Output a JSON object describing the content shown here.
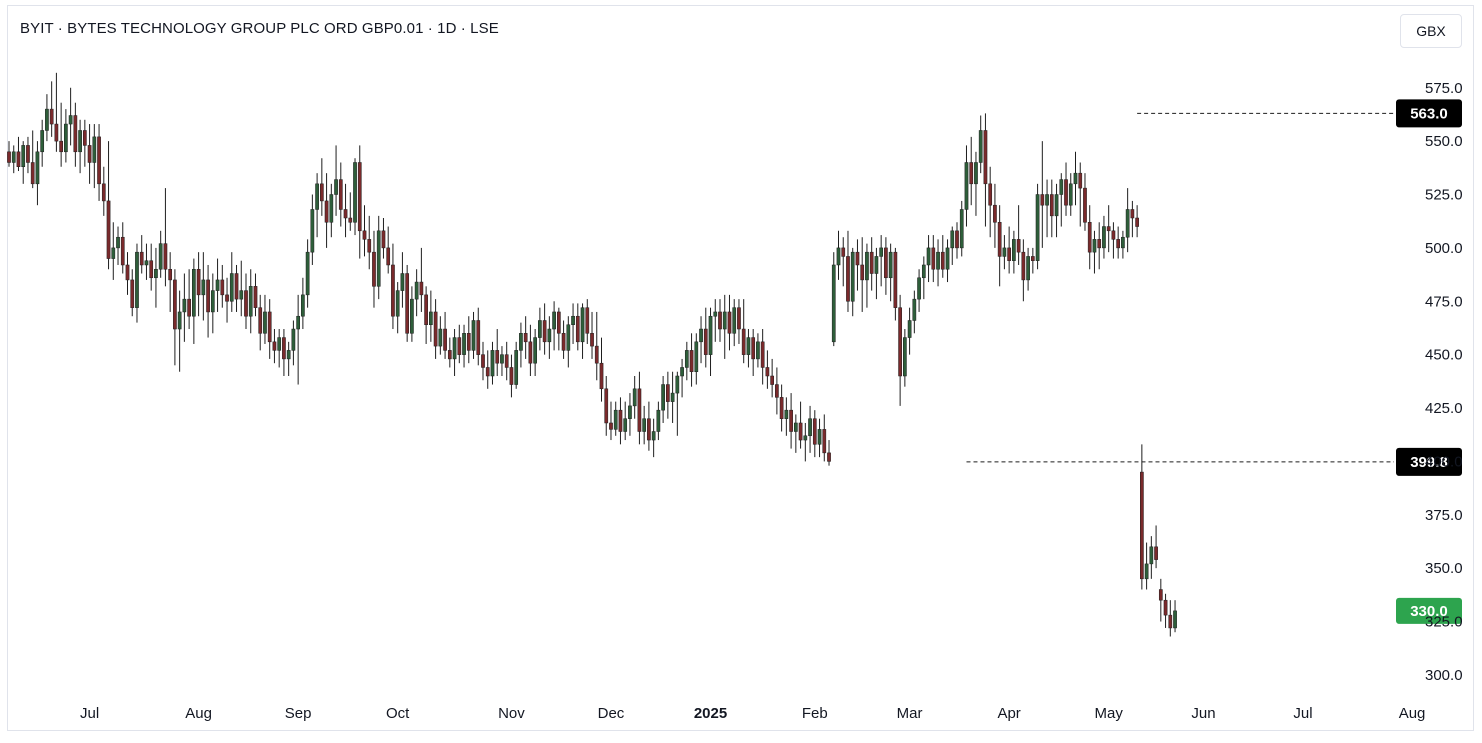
{
  "header": {
    "title": "BYIT · BYTES TECHNOLOGY GROUP PLC ORD GBP0.01 · 1D · LSE",
    "currency": "GBX"
  },
  "colors": {
    "up": "#2e5e3a",
    "down": "#7a2a2c",
    "wick": "#1e1e1e",
    "last_price_badge": "#2da44e",
    "marker_badge": "#000000",
    "grid_text": "#131722"
  },
  "chart_data": {
    "type": "candlestick",
    "y_ticks": [
      "575.0",
      "550.0",
      "525.0",
      "500.0",
      "475.0",
      "450.0",
      "425.0",
      "400.0",
      "375.0",
      "350.0",
      "325.0",
      "300.0"
    ],
    "y_tick_values": [
      575,
      550,
      525,
      500,
      475,
      450,
      425,
      400,
      375,
      350,
      325,
      300
    ],
    "ylim": [
      292,
      588
    ],
    "x_labels": [
      {
        "label": "Jul",
        "day": 17,
        "bold": false
      },
      {
        "label": "Aug",
        "day": 40,
        "bold": false
      },
      {
        "label": "Sep",
        "day": 61,
        "bold": false
      },
      {
        "label": "Oct",
        "day": 82,
        "bold": false
      },
      {
        "label": "Nov",
        "day": 106,
        "bold": false
      },
      {
        "label": "Dec",
        "day": 127,
        "bold": false
      },
      {
        "label": "2025",
        "day": 148,
        "bold": true
      },
      {
        "label": "Feb",
        "day": 170,
        "bold": false
      },
      {
        "label": "Mar",
        "day": 190,
        "bold": false
      },
      {
        "label": "Apr",
        "day": 211,
        "bold": false
      },
      {
        "label": "May",
        "day": 232,
        "bold": false
      },
      {
        "label": "Jun",
        "day": 252,
        "bold": false
      },
      {
        "label": "Jul",
        "day": 273,
        "bold": false
      },
      {
        "label": "Aug",
        "day": 296,
        "bold": false
      }
    ],
    "markers": [
      {
        "label": "563.0",
        "value": 563.0,
        "start_day": 238,
        "style": "dashed"
      },
      {
        "label": "399.8",
        "value": 399.8,
        "start_day": 202,
        "style": "dashed"
      }
    ],
    "last_price": {
      "label": "330.0",
      "value": 330.0
    },
    "candles": [
      [
        545,
        550,
        538,
        540
      ],
      [
        540,
        548,
        535,
        545
      ],
      [
        545,
        552,
        536,
        538
      ],
      [
        538,
        550,
        530,
        548
      ],
      [
        548,
        552,
        535,
        540
      ],
      [
        540,
        555,
        528,
        530
      ],
      [
        530,
        550,
        520,
        545
      ],
      [
        545,
        560,
        538,
        555
      ],
      [
        555,
        572,
        550,
        565
      ],
      [
        565,
        578,
        552,
        558
      ],
      [
        558,
        582,
        545,
        550
      ],
      [
        550,
        568,
        538,
        545
      ],
      [
        545,
        565,
        540,
        558
      ],
      [
        558,
        575,
        548,
        562
      ],
      [
        562,
        568,
        538,
        545
      ],
      [
        545,
        560,
        535,
        555
      ],
      [
        555,
        560,
        538,
        548
      ],
      [
        548,
        558,
        530,
        540
      ],
      [
        540,
        558,
        528,
        552
      ],
      [
        552,
        558,
        522,
        530
      ],
      [
        530,
        538,
        515,
        522
      ],
      [
        522,
        550,
        490,
        495
      ],
      [
        495,
        512,
        485,
        500
      ],
      [
        500,
        510,
        492,
        505
      ],
      [
        505,
        512,
        488,
        492
      ],
      [
        492,
        498,
        478,
        485
      ],
      [
        485,
        490,
        468,
        472
      ],
      [
        472,
        502,
        465,
        498
      ],
      [
        498,
        506,
        488,
        492
      ],
      [
        492,
        502,
        485,
        494
      ],
      [
        494,
        502,
        480,
        486
      ],
      [
        486,
        500,
        472,
        490
      ],
      [
        490,
        508,
        486,
        502
      ],
      [
        502,
        528,
        482,
        490
      ],
      [
        490,
        498,
        470,
        485
      ],
      [
        485,
        490,
        445,
        462
      ],
      [
        462,
        480,
        442,
        470
      ],
      [
        470,
        488,
        456,
        476
      ],
      [
        476,
        490,
        462,
        468
      ],
      [
        468,
        495,
        455,
        490
      ],
      [
        490,
        498,
        468,
        478
      ],
      [
        478,
        498,
        466,
        485
      ],
      [
        485,
        492,
        458,
        470
      ],
      [
        470,
        488,
        460,
        480
      ],
      [
        480,
        495,
        470,
        485
      ],
      [
        485,
        492,
        472,
        478
      ],
      [
        478,
        486,
        465,
        475
      ],
      [
        475,
        498,
        470,
        488
      ],
      [
        488,
        492,
        470,
        476
      ],
      [
        476,
        494,
        468,
        480
      ],
      [
        480,
        488,
        462,
        468
      ],
      [
        468,
        490,
        460,
        482
      ],
      [
        482,
        488,
        468,
        472
      ],
      [
        472,
        478,
        452,
        460
      ],
      [
        460,
        478,
        455,
        470
      ],
      [
        470,
        476,
        448,
        456
      ],
      [
        456,
        462,
        446,
        452
      ],
      [
        452,
        462,
        444,
        458
      ],
      [
        458,
        462,
        440,
        448
      ],
      [
        448,
        456,
        440,
        452
      ],
      [
        452,
        466,
        445,
        462
      ],
      [
        462,
        478,
        436,
        468
      ],
      [
        468,
        486,
        462,
        478
      ],
      [
        478,
        504,
        472,
        498
      ],
      [
        498,
        525,
        492,
        518
      ],
      [
        518,
        535,
        505,
        530
      ],
      [
        530,
        542,
        515,
        522
      ],
      [
        522,
        535,
        500,
        512
      ],
      [
        512,
        530,
        505,
        525
      ],
      [
        525,
        548,
        515,
        532
      ],
      [
        532,
        540,
        510,
        518
      ],
      [
        518,
        530,
        505,
        514
      ],
      [
        514,
        526,
        508,
        512
      ],
      [
        512,
        542,
        506,
        540
      ],
      [
        540,
        548,
        495,
        508
      ],
      [
        508,
        520,
        496,
        504
      ],
      [
        504,
        515,
        490,
        498
      ],
      [
        498,
        508,
        472,
        482
      ],
      [
        482,
        515,
        476,
        508
      ],
      [
        508,
        514,
        495,
        500
      ],
      [
        500,
        510,
        488,
        492
      ],
      [
        492,
        502,
        462,
        468
      ],
      [
        468,
        484,
        460,
        480
      ],
      [
        480,
        498,
        472,
        488
      ],
      [
        488,
        492,
        456,
        460
      ],
      [
        460,
        482,
        456,
        476
      ],
      [
        476,
        490,
        468,
        484
      ],
      [
        484,
        500,
        470,
        478
      ],
      [
        478,
        482,
        455,
        464
      ],
      [
        464,
        480,
        456,
        470
      ],
      [
        470,
        476,
        448,
        454
      ],
      [
        454,
        468,
        450,
        462
      ],
      [
        462,
        470,
        448,
        452
      ],
      [
        452,
        458,
        444,
        448
      ],
      [
        448,
        462,
        440,
        458
      ],
      [
        458,
        464,
        446,
        450
      ],
      [
        450,
        464,
        444,
        460
      ],
      [
        460,
        468,
        446,
        452
      ],
      [
        452,
        470,
        448,
        466
      ],
      [
        466,
        472,
        445,
        450
      ],
      [
        450,
        456,
        438,
        444
      ],
      [
        444,
        452,
        434,
        440
      ],
      [
        440,
        456,
        436,
        452
      ],
      [
        452,
        462,
        440,
        446
      ],
      [
        446,
        454,
        440,
        450
      ],
      [
        450,
        456,
        438,
        444
      ],
      [
        444,
        450,
        430,
        436
      ],
      [
        436,
        456,
        434,
        452
      ],
      [
        452,
        465,
        444,
        460
      ],
      [
        460,
        468,
        448,
        456
      ],
      [
        456,
        464,
        440,
        446
      ],
      [
        446,
        462,
        440,
        458
      ],
      [
        458,
        472,
        452,
        466
      ],
      [
        466,
        474,
        450,
        456
      ],
      [
        456,
        468,
        448,
        462
      ],
      [
        462,
        475,
        452,
        470
      ],
      [
        470,
        472,
        452,
        460
      ],
      [
        460,
        466,
        448,
        452
      ],
      [
        452,
        468,
        444,
        464
      ],
      [
        464,
        474,
        455,
        468
      ],
      [
        468,
        474,
        452,
        456
      ],
      [
        456,
        474,
        448,
        472
      ],
      [
        472,
        476,
        455,
        460
      ],
      [
        460,
        470,
        448,
        454
      ],
      [
        454,
        470,
        438,
        446
      ],
      [
        446,
        458,
        428,
        434
      ],
      [
        434,
        440,
        412,
        418
      ],
      [
        418,
        428,
        410,
        415
      ],
      [
        415,
        428,
        412,
        424
      ],
      [
        424,
        430,
        408,
        414
      ],
      [
        414,
        428,
        410,
        420
      ],
      [
        420,
        432,
        412,
        426
      ],
      [
        426,
        440,
        420,
        434
      ],
      [
        434,
        442,
        408,
        414
      ],
      [
        414,
        426,
        408,
        420
      ],
      [
        420,
        428,
        405,
        410
      ],
      [
        410,
        420,
        402,
        414
      ],
      [
        414,
        428,
        410,
        424
      ],
      [
        424,
        440,
        418,
        436
      ],
      [
        436,
        442,
        420,
        428
      ],
      [
        428,
        442,
        418,
        432
      ],
      [
        432,
        442,
        412,
        440
      ],
      [
        440,
        448,
        430,
        444
      ],
      [
        444,
        456,
        438,
        452
      ],
      [
        452,
        460,
        435,
        442
      ],
      [
        442,
        460,
        436,
        456
      ],
      [
        456,
        468,
        446,
        462
      ],
      [
        462,
        472,
        444,
        450
      ],
      [
        450,
        472,
        440,
        468
      ],
      [
        468,
        476,
        456,
        470
      ],
      [
        470,
        476,
        456,
        462
      ],
      [
        462,
        478,
        448,
        470
      ],
      [
        470,
        478,
        452,
        460
      ],
      [
        460,
        476,
        454,
        472
      ],
      [
        472,
        476,
        455,
        462
      ],
      [
        462,
        476,
        446,
        450
      ],
      [
        450,
        462,
        444,
        458
      ],
      [
        458,
        462,
        440,
        448
      ],
      [
        448,
        460,
        444,
        456
      ],
      [
        456,
        462,
        436,
        444
      ],
      [
        444,
        452,
        434,
        440
      ],
      [
        440,
        448,
        430,
        436
      ],
      [
        436,
        444,
        422,
        430
      ],
      [
        430,
        436,
        414,
        420
      ],
      [
        420,
        430,
        412,
        424
      ],
      [
        424,
        432,
        406,
        414
      ],
      [
        414,
        422,
        404,
        418
      ],
      [
        418,
        428,
        406,
        410
      ],
      [
        410,
        418,
        400,
        412
      ],
      [
        412,
        426,
        404,
        420
      ],
      [
        420,
        424,
        402,
        408
      ],
      [
        408,
        420,
        402,
        415
      ],
      [
        415,
        422,
        400,
        404
      ],
      [
        404,
        410,
        398,
        400
      ],
      [
        456,
        498,
        454,
        492
      ],
      [
        492,
        508,
        485,
        500
      ],
      [
        500,
        505,
        482,
        496
      ],
      [
        496,
        508,
        470,
        475
      ],
      [
        475,
        500,
        468,
        498
      ],
      [
        498,
        504,
        480,
        492
      ],
      [
        492,
        505,
        470,
        485
      ],
      [
        485,
        502,
        472,
        498
      ],
      [
        498,
        505,
        480,
        488
      ],
      [
        488,
        500,
        476,
        496
      ],
      [
        496,
        506,
        482,
        500
      ],
      [
        500,
        505,
        478,
        486
      ],
      [
        486,
        502,
        475,
        498
      ],
      [
        498,
        500,
        466,
        472
      ],
      [
        472,
        478,
        426,
        440
      ],
      [
        440,
        462,
        435,
        458
      ],
      [
        458,
        472,
        450,
        466
      ],
      [
        466,
        480,
        460,
        476
      ],
      [
        476,
        490,
        470,
        486
      ],
      [
        486,
        496,
        476,
        492
      ],
      [
        492,
        506,
        484,
        500
      ],
      [
        500,
        506,
        484,
        490
      ],
      [
        490,
        504,
        482,
        498
      ],
      [
        498,
        506,
        486,
        490
      ],
      [
        490,
        504,
        484,
        500
      ],
      [
        500,
        510,
        492,
        508
      ],
      [
        508,
        512,
        495,
        500
      ],
      [
        500,
        522,
        496,
        518
      ],
      [
        518,
        548,
        510,
        540
      ],
      [
        540,
        552,
        520,
        530
      ],
      [
        530,
        545,
        515,
        540
      ],
      [
        540,
        562,
        535,
        555
      ],
      [
        555,
        563,
        510,
        530
      ],
      [
        530,
        538,
        505,
        520
      ],
      [
        520,
        530,
        500,
        512
      ],
      [
        512,
        520,
        482,
        496
      ],
      [
        496,
        506,
        490,
        500
      ],
      [
        500,
        510,
        488,
        494
      ],
      [
        494,
        508,
        488,
        504
      ],
      [
        504,
        520,
        492,
        498
      ],
      [
        498,
        504,
        475,
        485
      ],
      [
        485,
        500,
        480,
        496
      ],
      [
        496,
        500,
        488,
        494
      ],
      [
        494,
        530,
        490,
        525
      ],
      [
        525,
        550,
        500,
        520
      ],
      [
        520,
        532,
        505,
        525
      ],
      [
        525,
        532,
        505,
        515
      ],
      [
        515,
        530,
        505,
        525
      ],
      [
        525,
        535,
        510,
        532
      ],
      [
        532,
        540,
        515,
        520
      ],
      [
        520,
        535,
        515,
        530
      ],
      [
        530,
        545,
        520,
        535
      ],
      [
        535,
        540,
        510,
        528
      ],
      [
        528,
        535,
        508,
        512
      ],
      [
        512,
        520,
        490,
        498
      ],
      [
        498,
        508,
        488,
        504
      ],
      [
        504,
        512,
        490,
        500
      ],
      [
        500,
        515,
        495,
        510
      ],
      [
        510,
        520,
        498,
        508
      ],
      [
        508,
        512,
        495,
        504
      ],
      [
        504,
        510,
        495,
        500
      ],
      [
        500,
        508,
        495,
        505
      ],
      [
        505,
        528,
        498,
        518
      ],
      [
        518,
        522,
        505,
        514
      ],
      [
        514,
        520,
        505,
        510
      ],
      [
        395,
        408,
        340,
        345
      ],
      [
        345,
        362,
        340,
        352
      ],
      [
        352,
        365,
        345,
        360
      ],
      [
        360,
        370,
        350,
        354
      ],
      [
        340,
        345,
        325,
        335
      ],
      [
        335,
        338,
        322,
        328
      ],
      [
        328,
        335,
        318,
        322
      ],
      [
        322,
        335,
        320,
        330
      ]
    ]
  }
}
